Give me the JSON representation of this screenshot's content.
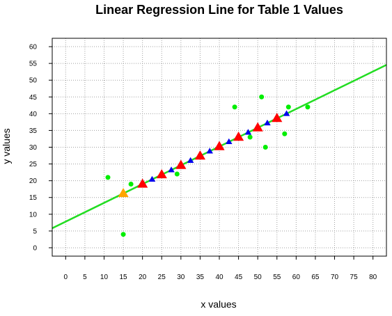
{
  "chart_data": {
    "type": "scatter",
    "title": "Linear Regression Line for Table 1 Values",
    "xlabel": "x values",
    "ylabel": "y values",
    "xlim": [
      -3.5,
      83.5
    ],
    "ylim": [
      -2.5,
      62.5
    ],
    "x_ticks": [
      0,
      5,
      10,
      15,
      20,
      25,
      30,
      35,
      40,
      45,
      50,
      55,
      60,
      65,
      70,
      75,
      80
    ],
    "y_ticks": [
      0,
      5,
      10,
      15,
      20,
      25,
      30,
      35,
      40,
      45,
      50,
      55,
      60
    ],
    "grid": true,
    "regression_line": {
      "intercept": 7.8,
      "slope": 0.56,
      "color": "#22dd22"
    },
    "series": [
      {
        "marker": "circle",
        "color": "#00ee00",
        "points": [
          [
            11,
            21
          ],
          [
            15,
            4
          ],
          [
            17,
            19
          ],
          [
            29,
            22
          ],
          [
            44,
            42
          ],
          [
            48,
            33
          ],
          [
            51,
            45
          ],
          [
            52,
            30
          ],
          [
            57,
            34
          ],
          [
            58,
            42
          ],
          [
            63,
            42
          ]
        ]
      },
      {
        "marker": "triangle",
        "color": "#ff0000",
        "points": [
          [
            20,
            19
          ],
          [
            25,
            21.8
          ],
          [
            30,
            24.6
          ],
          [
            35,
            27.4
          ],
          [
            40,
            30.2
          ],
          [
            45,
            33
          ],
          [
            50,
            35.8
          ],
          [
            55,
            38.6
          ]
        ]
      },
      {
        "marker": "small-triangle",
        "color": "#0000ee",
        "points": [
          [
            22.5,
            20.4
          ],
          [
            27.5,
            23.2
          ],
          [
            32.5,
            26
          ],
          [
            37.5,
            28.8
          ],
          [
            42.5,
            31.6
          ],
          [
            47.5,
            34.4
          ],
          [
            52.5,
            37.2
          ],
          [
            57.5,
            40
          ]
        ]
      },
      {
        "marker": "triangle",
        "color": "#ffa500",
        "points": [
          [
            15,
            16.2
          ]
        ]
      }
    ]
  }
}
